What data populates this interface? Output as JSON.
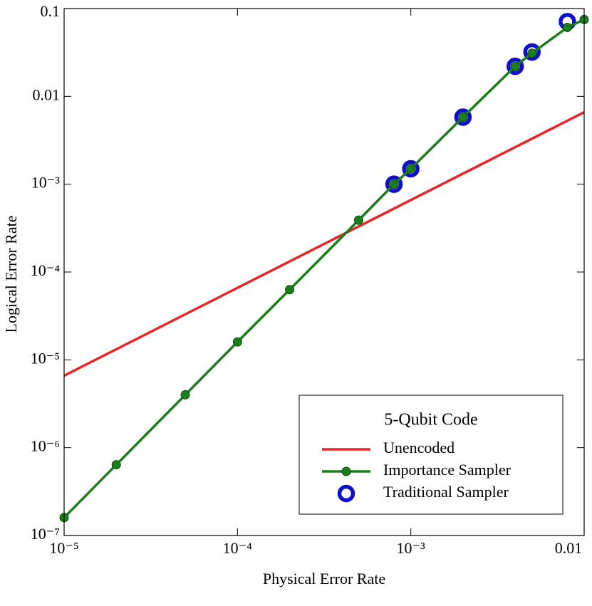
{
  "chart_data": {
    "type": "line",
    "xlabel": "Physical Error Rate",
    "ylabel": "Logical Error Rate",
    "xscale": "log",
    "yscale": "log",
    "xlim": [
      1e-05,
      0.01
    ],
    "ylim": [
      1e-07,
      0.1
    ],
    "xticks": [
      {
        "value": 1e-05,
        "label": "10⁻⁵"
      },
      {
        "value": 0.0001,
        "label": "10⁻⁴"
      },
      {
        "value": 0.001,
        "label": "10⁻³"
      },
      0.01
    ],
    "yticks": [
      {
        "value": 1e-07,
        "label": "10⁻⁷"
      },
      {
        "value": 1e-06,
        "label": "10⁻⁶"
      },
      {
        "value": 1e-05,
        "label": "10⁻⁵"
      },
      {
        "value": 0.0001,
        "label": "10⁻⁴"
      },
      {
        "value": 0.001,
        "label": "10⁻³"
      },
      0.01,
      0.1
    ],
    "legend": {
      "title": "5-Qubit Code",
      "loc": "lower right"
    },
    "series": [
      {
        "name": "Unencoded",
        "color": "#e8262a",
        "marker": "none",
        "line": true,
        "x": [
          1e-05,
          0.01
        ],
        "values": [
          6.6e-06,
          0.0066
        ]
      },
      {
        "name": "Importance Sampler",
        "color": "#1a7f1a",
        "marker": "dot",
        "line": true,
        "x": [
          1e-05,
          2e-05,
          5e-05,
          0.0001,
          0.0002,
          0.0005,
          0.0008,
          0.001,
          0.002,
          0.004,
          0.005,
          0.008,
          0.01
        ],
        "values": [
          1.6e-07,
          6.4e-07,
          4e-06,
          1.6e-05,
          6.3e-05,
          0.00039,
          0.001,
          0.0015,
          0.0058,
          0.022,
          0.031,
          0.061,
          0.075
        ]
      },
      {
        "name": "Traditional Sampler",
        "color": "#1010cc",
        "marker": "ring",
        "line": false,
        "x": [
          0.0008,
          0.001,
          0.002,
          0.004,
          0.005,
          0.008
        ],
        "values": [
          0.001,
          0.0015,
          0.0058,
          0.022,
          0.032,
          0.071
        ]
      }
    ]
  }
}
